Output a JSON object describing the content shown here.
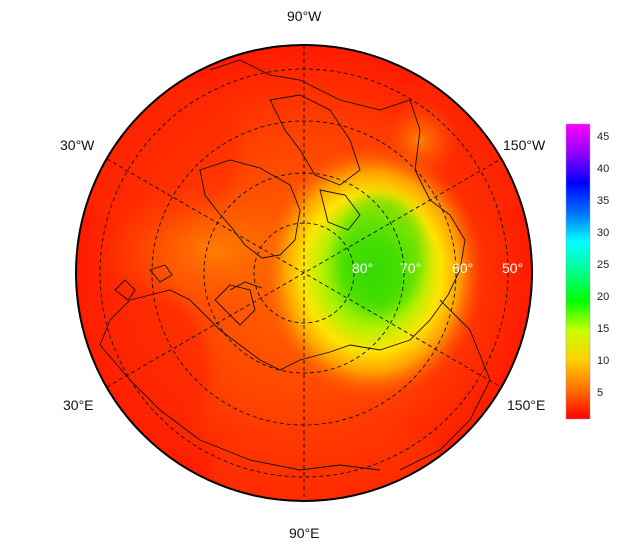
{
  "map": {
    "projection": "north-polar-stereographic",
    "longitude_labels": {
      "top": "90°W",
      "upper_left": "30°W",
      "upper_right": "150°W",
      "lower_left": "30°E",
      "lower_right": "150°E",
      "bottom": "90°E"
    },
    "latitude_labels": [
      "80°",
      "70°",
      "60°",
      "50°"
    ],
    "field": {
      "background_value": 2,
      "anomaly_center_value": 17,
      "anomaly_peak_region": "Arctic Ocean toward Siberian / Pacific side"
    }
  },
  "colorbar": {
    "ticks": [
      "5",
      "10",
      "15",
      "20",
      "25",
      "30",
      "35",
      "40",
      "45"
    ],
    "range": [
      1,
      47
    ],
    "colors": [
      "#ff0000",
      "#ff7000",
      "#ffd000",
      "#c8ff00",
      "#00ff00",
      "#00ff90",
      "#00ffff",
      "#0070ff",
      "#0000ff",
      "#9000ff",
      "#ff00ff"
    ]
  }
}
